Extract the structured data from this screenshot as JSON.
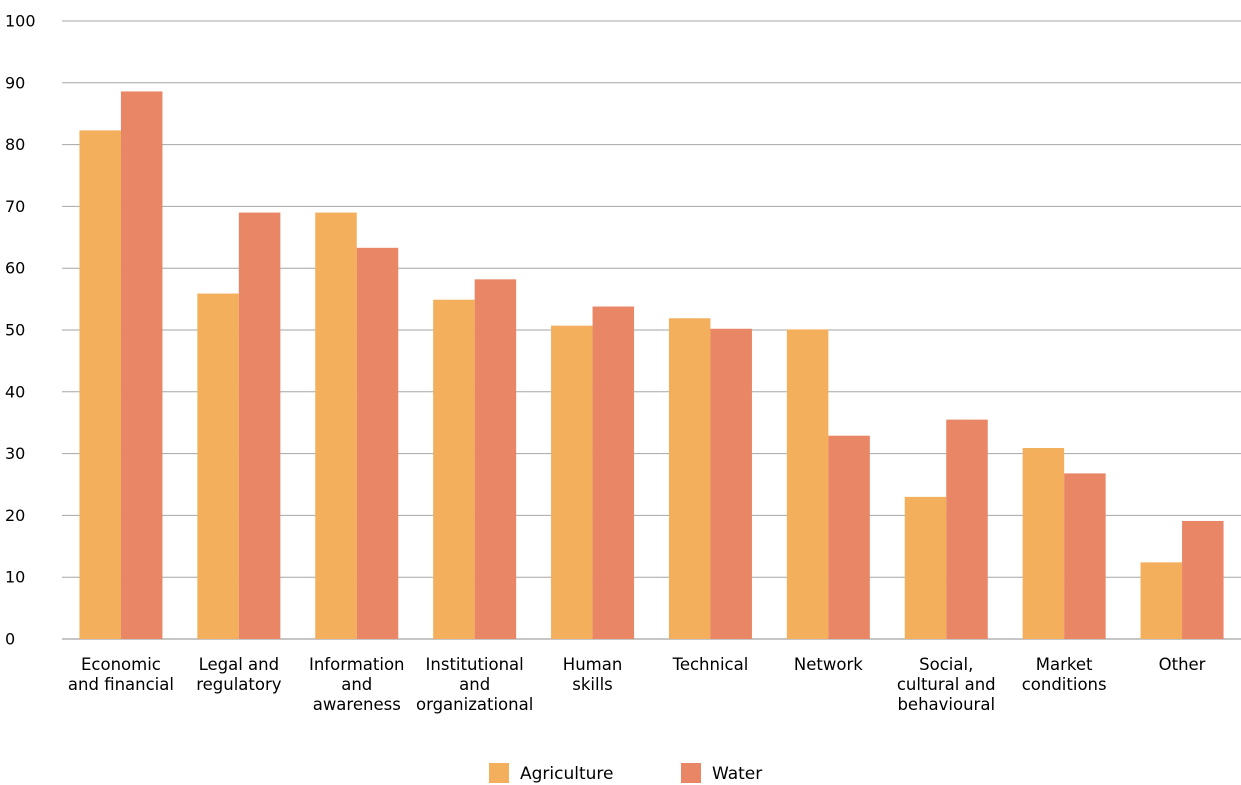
{
  "chart_data": {
    "type": "bar",
    "title": "",
    "xlabel": "",
    "ylabel": "",
    "ylim": [
      0,
      100
    ],
    "yticks": [
      0,
      10,
      20,
      30,
      40,
      50,
      60,
      70,
      80,
      90,
      100
    ],
    "grid": true,
    "legend_position": "bottom-center",
    "categories": [
      [
        "Economic",
        "and financial"
      ],
      [
        "Legal and",
        "regulatory"
      ],
      [
        "Information",
        "and",
        "awareness"
      ],
      [
        "Institutional",
        "and",
        "organizational"
      ],
      [
        "Human",
        "skills"
      ],
      [
        "Technical"
      ],
      [
        "Network"
      ],
      [
        "Social,",
        "cultural and",
        "behavioural"
      ],
      [
        "Market",
        "conditions"
      ],
      [
        "Other"
      ]
    ],
    "series": [
      {
        "name": "Agriculture",
        "color": "#f3af5b",
        "values": [
          82.3,
          55.9,
          69.0,
          54.9,
          50.7,
          51.9,
          50.1,
          23.0,
          30.9,
          12.4
        ]
      },
      {
        "name": "Water",
        "color": "#e98665",
        "values": [
          88.6,
          69.0,
          63.3,
          58.2,
          53.8,
          50.2,
          32.9,
          35.5,
          26.8,
          19.1
        ]
      }
    ]
  }
}
